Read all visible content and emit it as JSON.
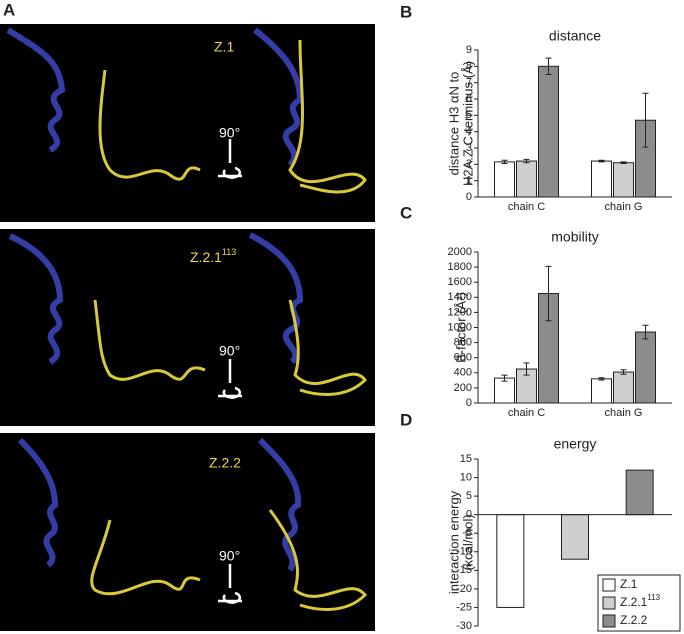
{
  "panel_a": {
    "label": "A",
    "structures": [
      {
        "name": "Z.1",
        "rotation": "90°"
      },
      {
        "name": "Z.2.1",
        "superscript": "113",
        "rotation": "90°"
      },
      {
        "name": "Z.2.2",
        "rotation": "90°"
      }
    ]
  },
  "chart_data": [
    {
      "panel_label": "B",
      "type": "bar",
      "title": "distance",
      "y_label": [
        "distance H3 αN to",
        "H2A.Z C-terminus (Å)"
      ],
      "categories": [
        "chain C",
        "chain G"
      ],
      "series": [
        {
          "color": "#ffffff",
          "values": [
            2.15,
            2.2
          ],
          "errors": [
            0.1,
            0.05
          ]
        },
        {
          "color": "#cfcfcf",
          "values": [
            2.2,
            2.1
          ],
          "errors": [
            0.1,
            0.05
          ]
        },
        {
          "color": "#8c8c8c",
          "values": [
            8.0,
            4.7
          ],
          "errors": [
            0.5,
            1.65
          ]
        }
      ],
      "ylim": [
        0,
        9
      ],
      "yticks": [
        0,
        1,
        2,
        3,
        4,
        5,
        6,
        7,
        8,
        9
      ]
    },
    {
      "panel_label": "C",
      "type": "bar",
      "title": "mobility",
      "y_label": [
        "B-factor (Å²)"
      ],
      "categories": [
        "chain C",
        "chain G"
      ],
      "series": [
        {
          "color": "#ffffff",
          "values": [
            330,
            320
          ],
          "errors": [
            40,
            15
          ]
        },
        {
          "color": "#cfcfcf",
          "values": [
            450,
            410
          ],
          "errors": [
            80,
            30
          ]
        },
        {
          "color": "#8c8c8c",
          "values": [
            1450,
            940
          ],
          "errors": [
            360,
            90
          ]
        }
      ],
      "ylim": [
        0,
        2000
      ],
      "yticks": [
        0,
        200,
        400,
        600,
        800,
        1000,
        1200,
        1400,
        1600,
        1800,
        2000
      ]
    },
    {
      "panel_label": "D",
      "type": "bar",
      "title": "energy",
      "y_label": [
        "interaction energy",
        "(kcal/mol)"
      ],
      "categories": [
        null,
        null,
        null
      ],
      "series": [
        {
          "name": "Z.1",
          "color": "#ffffff",
          "values": [
            -25,
            null,
            null
          ]
        },
        {
          "name": "Z.2.1",
          "superscript": "113",
          "color": "#cfcfcf",
          "values": [
            null,
            -12,
            null
          ]
        },
        {
          "name": "Z.2.2",
          "color": "#8c8c8c",
          "values": [
            null,
            null,
            12
          ]
        }
      ],
      "ylim": [
        -30,
        15
      ],
      "yticks": [
        -30,
        -25,
        -20,
        -15,
        -10,
        -5,
        0,
        5,
        10,
        15
      ],
      "legend": "lower right"
    }
  ]
}
